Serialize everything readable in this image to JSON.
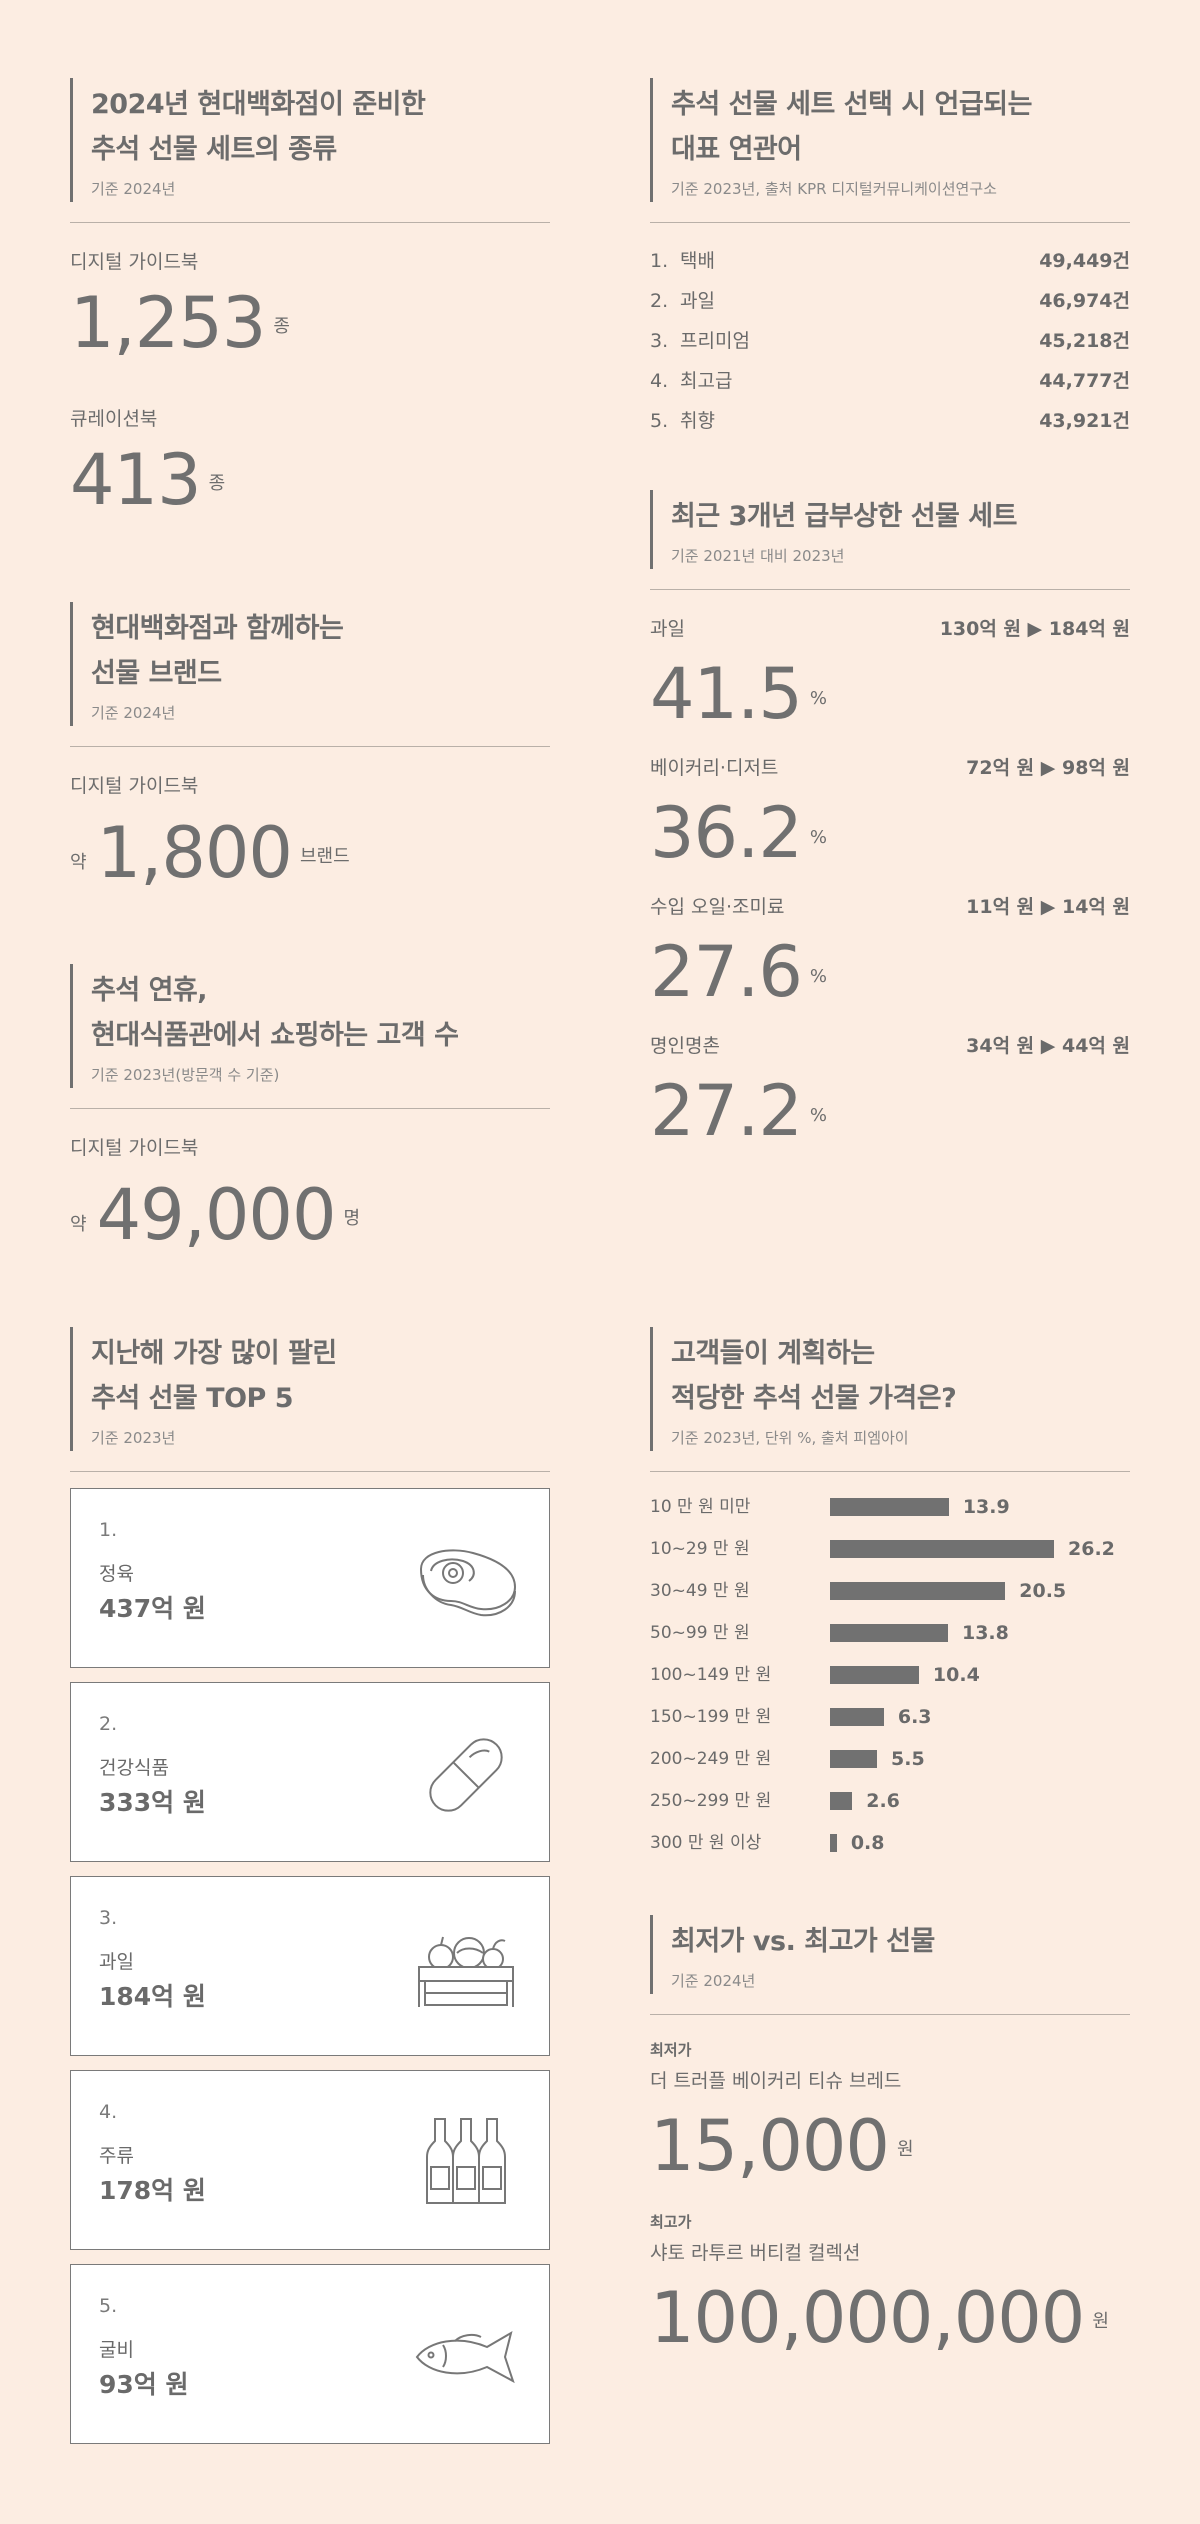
{
  "catalog": {
    "title_line1": "2024년 현대백화점이 준비한",
    "title_line2": "추석 선물 세트의 종류",
    "basis": "기준 2024년",
    "stats": [
      {
        "label": "디지털 가이드북",
        "value": "1,253",
        "unit": "종"
      },
      {
        "label": "큐레이션북",
        "value": "413",
        "unit": "종"
      }
    ]
  },
  "brands": {
    "title_line1": "현대백화점과 함께하는",
    "title_line2": "선물 브랜드",
    "basis": "기준 2024년",
    "label": "디지털 가이드북",
    "prefix": "약",
    "value": "1,800",
    "unit": "브랜드"
  },
  "shoppers": {
    "title_line1": "추석 연휴,",
    "title_line2": "현대식품관에서 쇼핑하는 고객 수",
    "basis": "기준 2023년(방문객 수 기준)",
    "label": "디지털 가이드북",
    "prefix": "약",
    "value": "49,000",
    "unit": "명"
  },
  "keywords": {
    "title_line1": "추석 선물 세트 선택 시 언급되는",
    "title_line2": "대표 연관어",
    "basis": "기준 2023년, 출처 KPR 디지털커뮤니케이션연구소",
    "items": [
      {
        "rank": "1.",
        "keyword": "택배",
        "count": "49,449건"
      },
      {
        "rank": "2.",
        "keyword": "과일",
        "count": "46,974건"
      },
      {
        "rank": "3.",
        "keyword": "프리미엄",
        "count": "45,218건"
      },
      {
        "rank": "4.",
        "keyword": "최고급",
        "count": "44,777건"
      },
      {
        "rank": "5.",
        "keyword": "취향",
        "count": "43,921건"
      }
    ]
  },
  "rising": {
    "title": "최근 3개년 급부상한 선물 세트",
    "basis": "기준 2021년 대비 2023년",
    "items": [
      {
        "category": "과일",
        "range": "130억 원 ▶ 184억 원",
        "growth": "41.5",
        "unit": "%"
      },
      {
        "category": "베이커리·디저트",
        "range": "72억 원 ▶ 98억 원",
        "growth": "36.2",
        "unit": "%"
      },
      {
        "category": "수입 오일·조미료",
        "range": "11억 원 ▶ 14억 원",
        "growth": "27.6",
        "unit": "%"
      },
      {
        "category": "명인명촌",
        "range": "34억 원 ▶ 44억 원",
        "growth": "27.2",
        "unit": "%"
      }
    ]
  },
  "top5": {
    "title_line1": "지난해 가장 많이 팔린",
    "title_line2": "추석 선물 TOP 5",
    "basis": "기준 2023년",
    "items": [
      {
        "rank": "1.",
        "name": "정육",
        "amount": "437억 원",
        "icon": "steak-icon"
      },
      {
        "rank": "2.",
        "name": "건강식품",
        "amount": "333억 원",
        "icon": "capsule-icon"
      },
      {
        "rank": "3.",
        "name": "과일",
        "amount": "184억 원",
        "icon": "fruit-crate-icon"
      },
      {
        "rank": "4.",
        "name": "주류",
        "amount": "178억 원",
        "icon": "bottles-icon"
      },
      {
        "rank": "5.",
        "name": "굴비",
        "amount": "93억 원",
        "icon": "fish-icon"
      }
    ]
  },
  "price_plan": {
    "title_line1": "고객들이 계획하는",
    "title_line2": "적당한 추석 선물 가격은?",
    "basis": "기준 2023년, 단위 %, 출처 피엠아이"
  },
  "chart_data": {
    "type": "bar",
    "orientation": "horizontal",
    "title": "고객들이 계획하는 적당한 추석 선물 가격은?",
    "categories": [
      "10 만 원 미만",
      "10~29 만 원",
      "30~49 만 원",
      "50~99 만 원",
      "100~149 만 원",
      "150~199 만 원",
      "200~249 만 원",
      "250~299 만 원",
      "300 만 원 이상"
    ],
    "values": [
      13.9,
      26.2,
      20.5,
      13.8,
      10.4,
      6.3,
      5.5,
      2.6,
      0.8
    ],
    "value_labels": [
      "13.9",
      "26.2",
      "20.5",
      "13.8",
      "10.4",
      "6.3",
      "5.5",
      "2.6",
      "0.8"
    ],
    "xlim": [
      0,
      26.2
    ],
    "grid": false,
    "bar_color": "#717171"
  },
  "extremes": {
    "title": "최저가 vs. 최고가 선물",
    "basis": "기준 2024년",
    "low_label": "최저가",
    "low_name": "더 트러플 베이커리 티슈 브레드",
    "low_value": "15,000",
    "low_unit": "원",
    "high_label": "최고가",
    "high_name": "샤토 라투르 버티컬 컬렉션",
    "high_value": "100,000,000",
    "high_unit": "원"
  }
}
